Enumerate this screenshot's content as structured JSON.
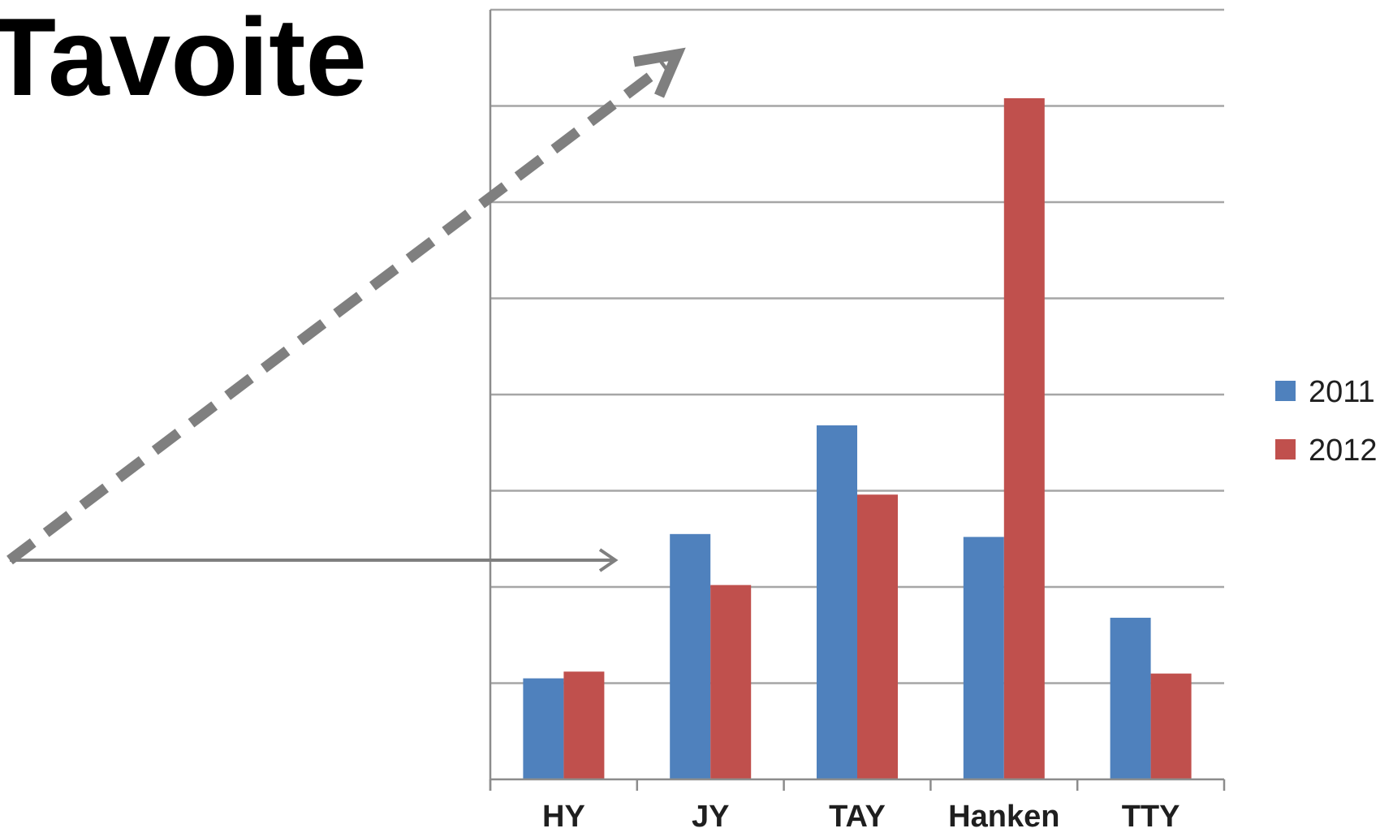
{
  "slide": {
    "title": "Tavoite"
  },
  "chart_data": {
    "type": "bar",
    "categories": [
      "HY",
      "JY",
      "TAY",
      "Hanken",
      "TTY"
    ],
    "series": [
      {
        "name": "2011",
        "color": "#4f81bd",
        "values": [
          1.05,
          2.55,
          3.68,
          2.52,
          1.68
        ]
      },
      {
        "name": "2012",
        "color": "#c0504d",
        "values": [
          1.12,
          2.02,
          2.96,
          7.08,
          1.1
        ]
      }
    ],
    "ylim": [
      0,
      8
    ],
    "grid": true,
    "y_tick_labels_shown": false,
    "legend_position": "right",
    "annotations": [
      {
        "type": "arrow",
        "style": "dashed",
        "color": "#7f7f7f",
        "direction": "up-right"
      },
      {
        "type": "arrow",
        "style": "solid",
        "color": "#7f7f7f",
        "direction": "right"
      }
    ]
  }
}
